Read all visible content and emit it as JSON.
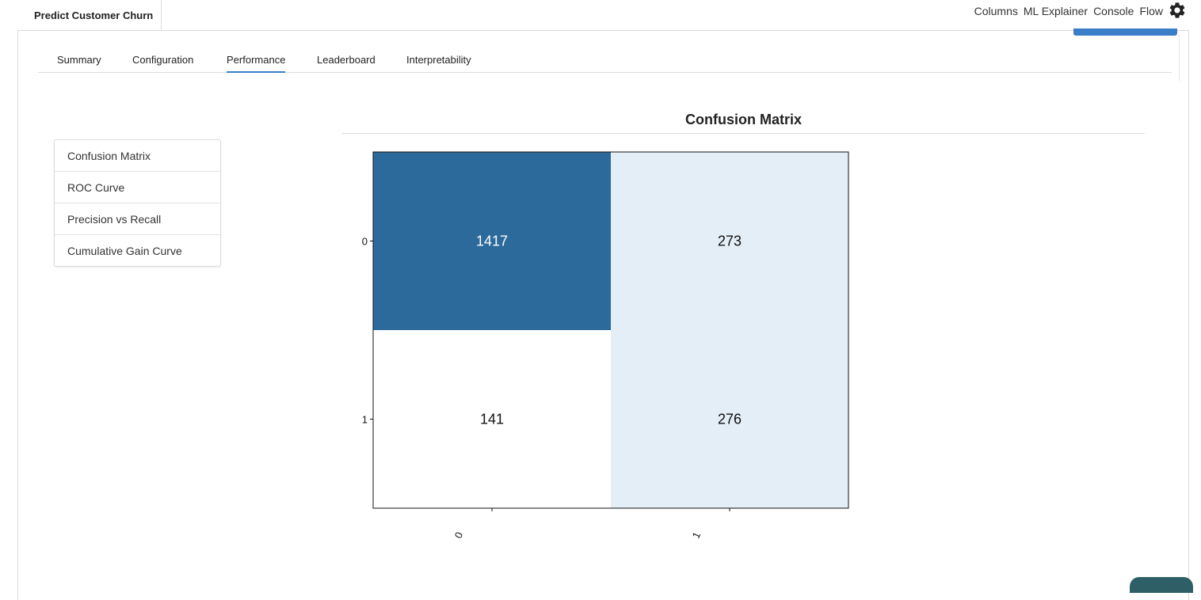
{
  "app": {
    "project_title": "Predict Customer Churn"
  },
  "top_nav": {
    "items": [
      "Columns",
      "ML Explainer",
      "Console",
      "Flow"
    ],
    "settings_icon": "gear-icon"
  },
  "tabs": [
    {
      "label": "Summary",
      "active": false
    },
    {
      "label": "Configuration",
      "active": false
    },
    {
      "label": "Performance",
      "active": true
    },
    {
      "label": "Leaderboard",
      "active": false
    },
    {
      "label": "Interpretability",
      "active": false
    }
  ],
  "side_menu": {
    "items": [
      "Confusion Matrix",
      "ROC Curve",
      "Precision vs Recall",
      "Cumulative Gain Curve"
    ]
  },
  "colors": {
    "accent": "#3a7dc9",
    "cell_dark": "#2c6a9b",
    "cell_light": "#e3eef6",
    "cell_white": "#ffffff"
  },
  "chart_data": {
    "type": "heatmap",
    "title": "Confusion Matrix",
    "x_tick_labels": [
      "0",
      "1"
    ],
    "y_tick_labels": [
      "0",
      "1"
    ],
    "matrix": [
      [
        1417,
        273
      ],
      [
        141,
        276
      ]
    ],
    "cell_labels": [
      [
        "1417",
        "273"
      ],
      [
        "141",
        "276"
      ]
    ],
    "xlabel": "",
    "ylabel": ""
  }
}
